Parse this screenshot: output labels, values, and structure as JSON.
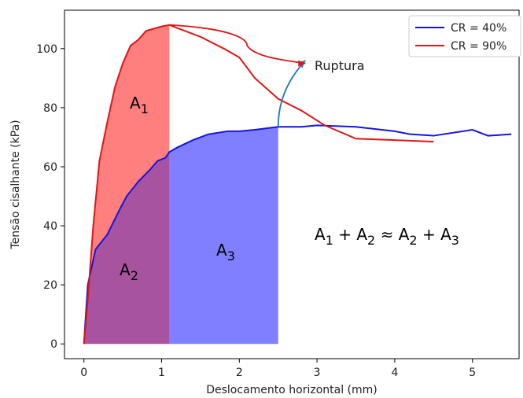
{
  "chart_data": {
    "type": "line",
    "xlabel": "Deslocamento horizontal (mm)",
    "ylabel": "Tensão cisalhante (kPa)",
    "xlim": [
      -0.25,
      5.6
    ],
    "ylim": [
      -5,
      113
    ],
    "xticks": [
      "0",
      "1",
      "2",
      "3",
      "4",
      "5"
    ],
    "yticks": [
      "0",
      "20",
      "40",
      "60",
      "80",
      "100"
    ],
    "legend_position": "top-right",
    "series": [
      {
        "name": "CR = 40%",
        "color": "#1515e0",
        "x": [
          0,
          0.05,
          0.15,
          0.3,
          0.45,
          0.55,
          0.7,
          0.85,
          0.95,
          1.05,
          1.1,
          1.2,
          1.4,
          1.6,
          1.85,
          2.0,
          2.2,
          2.5,
          2.8,
          3.0,
          3.5,
          4.0,
          4.2,
          4.5,
          5.0,
          5.2,
          5.5
        ],
        "y": [
          0,
          20,
          32,
          37,
          45,
          50,
          55,
          59,
          62,
          63,
          65,
          66.5,
          69,
          71,
          72,
          72,
          72.5,
          73.5,
          73.5,
          74,
          73.5,
          72,
          71,
          70.5,
          72.5,
          70.5,
          71
        ]
      },
      {
        "name": "CR = 90%",
        "color": "#e01515",
        "x": [
          0,
          0.05,
          0.12,
          0.2,
          0.3,
          0.4,
          0.5,
          0.6,
          0.7,
          0.8,
          1.0,
          1.1,
          1.2,
          1.5,
          1.8,
          2.0,
          2.2,
          2.5,
          2.8,
          3.1,
          3.5,
          4.0,
          4.5
        ],
        "y": [
          0,
          15,
          40,
          62,
          75,
          87,
          95,
          101,
          103,
          106,
          107.5,
          108,
          107,
          104,
          100,
          97,
          90,
          83,
          79,
          74,
          69.5,
          69,
          68.5
        ]
      }
    ],
    "shaded_regions": [
      {
        "label_main": "A",
        "label_sub": "1",
        "color": "#ff3b3b",
        "opacity": 0.65
      },
      {
        "label_main": "A",
        "label_sub": "2",
        "color": "#8b1a80",
        "opacity": 0.75
      },
      {
        "label_main": "A",
        "label_sub": "3",
        "color": "#3b3bff",
        "opacity": 0.65
      }
    ],
    "annotations": {
      "rupture_label": "Ruptura",
      "equation": {
        "a1": "A",
        "s1": "1",
        "plus1": " + ",
        "a2": "A",
        "s2": "2",
        "approx": " ≈ ",
        "a3": "A",
        "s3": "2",
        "plus2": " + ",
        "a4": "A",
        "s4": "3"
      },
      "rupture_arrow_color": "#1f77b4"
    }
  }
}
